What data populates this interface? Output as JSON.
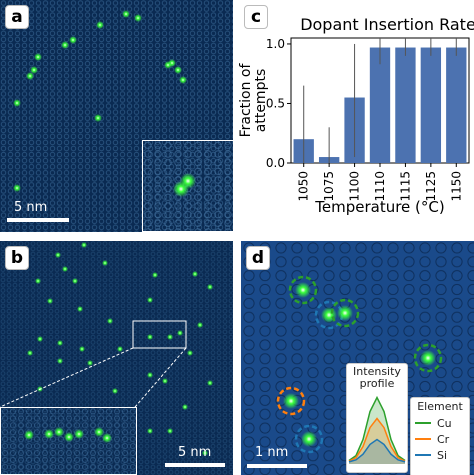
{
  "panels": {
    "a": {
      "letter": "a",
      "scalebar": "5 nm"
    },
    "b": {
      "letter": "b",
      "scalebar": "5 nm"
    },
    "c": {
      "letter": "c"
    },
    "d": {
      "letter": "d",
      "scalebar": "1 nm"
    }
  },
  "colors": {
    "background": "#0a2a52",
    "atom_green": "#39ff3a",
    "bar": "#4c72b0",
    "cu": "#2ca02c",
    "cr": "#ff7f0e",
    "si": "#1f77b4"
  },
  "chart_data": [
    {
      "type": "bar",
      "title": "Dopant Insertion Rate",
      "xlabel": "Temperature (°C)",
      "ylabel": "Fraction of attempts",
      "categories": [
        "1050",
        "1075",
        "1100",
        "1110",
        "1115",
        "1125",
        "1150"
      ],
      "values": [
        0.2,
        0.05,
        0.55,
        0.97,
        0.97,
        0.97,
        0.97
      ],
      "error_low": [
        0.0,
        0.0,
        0.05,
        0.83,
        0.9,
        0.9,
        0.9
      ],
      "error_high": [
        0.65,
        0.3,
        1.0,
        1.05,
        1.05,
        1.05,
        1.05
      ],
      "ylim": [
        0,
        1.05
      ],
      "yticks": [
        "0.0",
        "0.5",
        "1.0"
      ],
      "grid": false
    },
    {
      "type": "line",
      "title": "Intensity profile",
      "series": [
        {
          "name": "Cu",
          "values": [
            0.05,
            0.12,
            0.35,
            0.75,
            0.95,
            0.75,
            0.35,
            0.12,
            0.05
          ]
        },
        {
          "name": "Cr",
          "values": [
            0.04,
            0.09,
            0.25,
            0.52,
            0.65,
            0.52,
            0.25,
            0.09,
            0.04
          ]
        },
        {
          "name": "Si",
          "values": [
            0.03,
            0.06,
            0.14,
            0.28,
            0.35,
            0.28,
            0.14,
            0.06,
            0.03
          ]
        }
      ],
      "legend_title": "Element",
      "legend_placement": "right"
    }
  ]
}
